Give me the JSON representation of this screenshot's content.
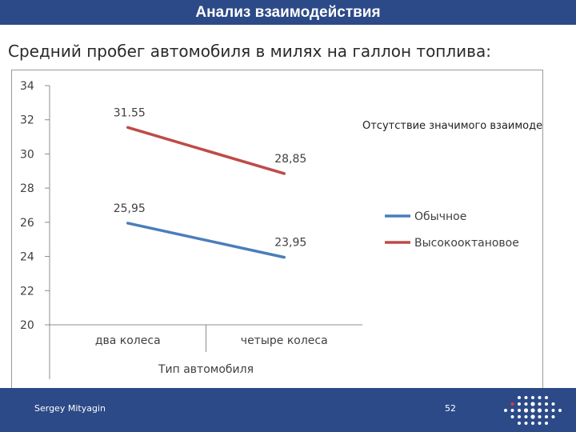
{
  "header": {
    "title": "Анализ взаимодействия"
  },
  "slide": {
    "subtitle": "Средний пробег автомобиля в милях на галлон топлива:"
  },
  "footer": {
    "author": "Sergey Mityagin",
    "page": "52"
  },
  "colors": {
    "title_bar": "#2c4a87",
    "series_regular": "#4a7ebb",
    "series_premium": "#be4b48"
  },
  "icons": {
    "logo": "dot-grid-logo"
  },
  "chart_data": {
    "type": "line",
    "categories": [
      "два колеса",
      "четыре колеса"
    ],
    "xlabel": "Тип автомобиля",
    "ylabel": "",
    "ylim": [
      20,
      34
    ],
    "yticks": [
      20,
      22,
      24,
      26,
      28,
      30,
      32,
      34
    ],
    "annotation": "Отсутствие значимого взаимодейст",
    "grid": false,
    "legend_position": "right",
    "series": [
      {
        "name": "Обычное",
        "values": [
          25.95,
          23.95
        ],
        "labels": [
          "25,95",
          "23,95"
        ],
        "color": "#4a7ebb"
      },
      {
        "name": "Высокооктановое",
        "values": [
          31.55,
          28.85
        ],
        "labels": [
          "31.55",
          "28,85"
        ],
        "color": "#be4b48"
      }
    ]
  }
}
